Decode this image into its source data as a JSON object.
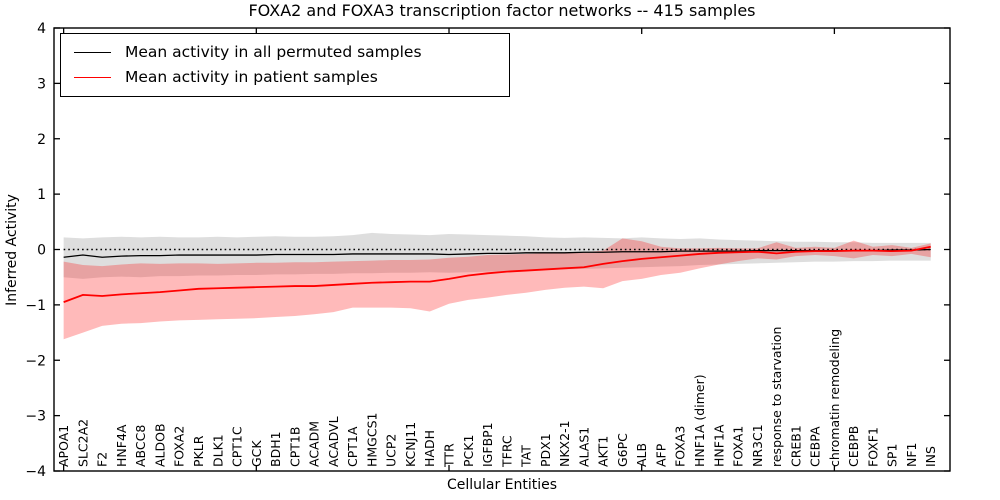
{
  "title": "FOXA2 and FOXA3 transcription factor networks -- 415 samples",
  "axes": {
    "xlabel": "Cellular Entities",
    "ylabel": "Inferred Activity",
    "ytick_labels": [
      "4",
      "3",
      "2",
      "1",
      "0",
      "−1",
      "−2",
      "−3",
      "−4"
    ],
    "ylim": [
      -4,
      4
    ],
    "xtick_interval": 10
  },
  "legend": {
    "entries": [
      {
        "label": "Mean activity in all permuted samples",
        "color": "#000000"
      },
      {
        "label": "Mean activity in patient samples",
        "color": "#ff0000"
      }
    ]
  },
  "colors": {
    "permuted_line": "#000000",
    "patient_line": "#ff0000",
    "permuted_band": "#000000",
    "patient_band": "#ff0000",
    "zero_line": "#000000",
    "permuted_band_opacity": 0.13,
    "patient_band_opacity": 0.27
  },
  "chart_data": {
    "type": "line",
    "title": "FOXA2 and FOXA3 transcription factor networks -- 415 samples",
    "xlabel": "Cellular Entities",
    "ylabel": "Inferred Activity",
    "ylim": [
      -4,
      4
    ],
    "grid": false,
    "legend_position": "upper left",
    "zero_reference_line": 0,
    "categories": [
      "APOA1",
      "SLC2A2",
      "F2",
      "HNF4A",
      "ABCC8",
      "ALDOB",
      "FOXA2",
      "PKLR",
      "DLK1",
      "CPT1C",
      "GCK",
      "BDH1",
      "CPT1B",
      "ACADM",
      "ACADVL",
      "CPT1A",
      "HMGCS1",
      "UCP2",
      "KCNJ11",
      "HADH",
      "TTR",
      "PCK1",
      "IGFBP1",
      "TFRC",
      "TAT",
      "PDX1",
      "NKX2-1",
      "ALAS1",
      "AKT1",
      "G6PC",
      "ALB",
      "AFP",
      "FOXA3",
      "HNF1A (dimer)",
      "HNF1A",
      "FOXA1",
      "NR3C1",
      "response to starvation",
      "CREB1",
      "CEBPA",
      "chromatin remodeling",
      "CEBPB",
      "FOXF1",
      "SP1",
      "NF1",
      "INS"
    ],
    "series": [
      {
        "name": "Mean activity in all permuted samples",
        "values": [
          -0.14,
          -0.1,
          -0.14,
          -0.12,
          -0.11,
          -0.11,
          -0.1,
          -0.1,
          -0.1,
          -0.1,
          -0.1,
          -0.09,
          -0.09,
          -0.09,
          -0.09,
          -0.08,
          -0.08,
          -0.08,
          -0.08,
          -0.08,
          -0.09,
          -0.08,
          -0.07,
          -0.07,
          -0.06,
          -0.06,
          -0.06,
          -0.05,
          -0.05,
          -0.04,
          -0.04,
          -0.04,
          -0.03,
          -0.03,
          -0.03,
          -0.03,
          -0.02,
          -0.02,
          -0.02,
          -0.02,
          -0.02,
          -0.02,
          -0.02,
          -0.01,
          -0.01,
          0.0
        ]
      },
      {
        "name": "Mean activity in patient samples",
        "values": [
          -0.95,
          -0.82,
          -0.84,
          -0.81,
          -0.79,
          -0.77,
          -0.74,
          -0.71,
          -0.7,
          -0.69,
          -0.68,
          -0.67,
          -0.66,
          -0.66,
          -0.64,
          -0.62,
          -0.6,
          -0.59,
          -0.58,
          -0.58,
          -0.53,
          -0.47,
          -0.43,
          -0.4,
          -0.38,
          -0.36,
          -0.34,
          -0.32,
          -0.26,
          -0.21,
          -0.17,
          -0.14,
          -0.11,
          -0.08,
          -0.06,
          -0.05,
          -0.04,
          -0.07,
          -0.04,
          -0.03,
          -0.03,
          -0.02,
          -0.02,
          -0.03,
          -0.02,
          0.05
        ]
      }
    ],
    "bands": [
      {
        "name": "permuted range",
        "upper": [
          0.22,
          0.2,
          0.22,
          0.23,
          0.22,
          0.23,
          0.22,
          0.22,
          0.23,
          0.22,
          0.23,
          0.24,
          0.23,
          0.23,
          0.24,
          0.26,
          0.3,
          0.28,
          0.27,
          0.26,
          0.28,
          0.27,
          0.26,
          0.25,
          0.24,
          0.22,
          0.21,
          0.22,
          0.21,
          0.2,
          0.22,
          0.2,
          0.19,
          0.2,
          0.18,
          0.17,
          0.16,
          0.15,
          0.14,
          0.14,
          0.13,
          0.13,
          0.12,
          0.12,
          0.12,
          0.12
        ],
        "lower": [
          -0.5,
          -0.53,
          -0.5,
          -0.49,
          -0.5,
          -0.48,
          -0.48,
          -0.47,
          -0.47,
          -0.46,
          -0.46,
          -0.45,
          -0.45,
          -0.44,
          -0.44,
          -0.43,
          -0.43,
          -0.42,
          -0.42,
          -0.41,
          -0.42,
          -0.41,
          -0.4,
          -0.39,
          -0.38,
          -0.37,
          -0.36,
          -0.35,
          -0.34,
          -0.33,
          -0.32,
          -0.31,
          -0.3,
          -0.28,
          -0.27,
          -0.26,
          -0.25,
          -0.24,
          -0.23,
          -0.22,
          -0.22,
          -0.21,
          -0.21,
          -0.2,
          -0.2,
          -0.2
        ]
      },
      {
        "name": "patient range",
        "upper": [
          -0.22,
          -0.28,
          -0.3,
          -0.27,
          -0.25,
          -0.26,
          -0.25,
          -0.25,
          -0.26,
          -0.25,
          -0.24,
          -0.24,
          -0.23,
          -0.23,
          -0.22,
          -0.21,
          -0.2,
          -0.19,
          -0.19,
          -0.18,
          -0.15,
          -0.13,
          -0.1,
          -0.09,
          -0.08,
          -0.07,
          -0.06,
          -0.05,
          -0.02,
          0.2,
          0.15,
          0.05,
          0.02,
          0.02,
          0.03,
          0.02,
          0.02,
          0.13,
          0.03,
          0.05,
          0.03,
          0.16,
          0.05,
          0.08,
          0.03,
          0.11
        ],
        "lower": [
          -1.62,
          -1.5,
          -1.38,
          -1.34,
          -1.33,
          -1.3,
          -1.28,
          -1.27,
          -1.26,
          -1.25,
          -1.24,
          -1.22,
          -1.2,
          -1.17,
          -1.13,
          -1.05,
          -1.05,
          -1.05,
          -1.06,
          -1.12,
          -0.98,
          -0.91,
          -0.87,
          -0.82,
          -0.78,
          -0.73,
          -0.69,
          -0.67,
          -0.7,
          -0.57,
          -0.53,
          -0.46,
          -0.42,
          -0.34,
          -0.27,
          -0.21,
          -0.16,
          -0.18,
          -0.12,
          -0.1,
          -0.12,
          -0.16,
          -0.1,
          -0.12,
          -0.08,
          -0.14
        ]
      }
    ]
  }
}
